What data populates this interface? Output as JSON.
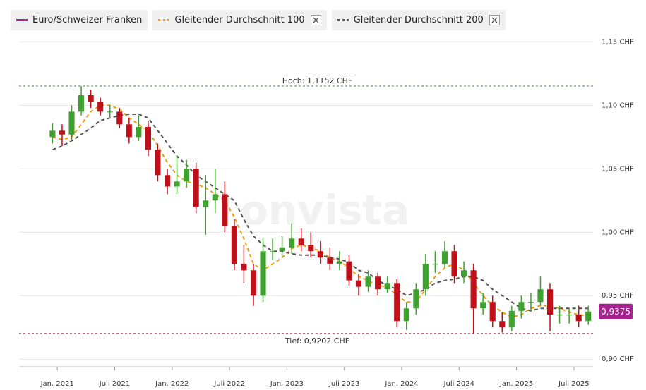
{
  "chart_data": {
    "type": "candlestick",
    "watermark": "onvista",
    "grid": true,
    "x": [
      "2020-12",
      "2021-01",
      "2021-02",
      "2021-03",
      "2021-04",
      "2021-05",
      "2021-06",
      "2021-07",
      "2021-08",
      "2021-09",
      "2021-10",
      "2021-11",
      "2021-12",
      "2022-01",
      "2022-02",
      "2022-03",
      "2022-04",
      "2022-05",
      "2022-06",
      "2022-07",
      "2022-08",
      "2022-09",
      "2022-10",
      "2022-11",
      "2022-12",
      "2023-01",
      "2023-02",
      "2023-03",
      "2023-04",
      "2023-05",
      "2023-06",
      "2023-07",
      "2023-08",
      "2023-09",
      "2023-10",
      "2023-11",
      "2023-12",
      "2024-01",
      "2024-02",
      "2024-03",
      "2024-04",
      "2024-05",
      "2024-06",
      "2024-07",
      "2024-08",
      "2024-09",
      "2024-10",
      "2024-11",
      "2024-12",
      "2025-01",
      "2025-02",
      "2025-03",
      "2025-04",
      "2025-05",
      "2025-06",
      "2025-07",
      "2025-08"
    ],
    "xlim": [
      "2020-09",
      "2025-09"
    ],
    "xticks": [
      {
        "value": "2021-01",
        "label": "Jan. 2021"
      },
      {
        "value": "2021-07",
        "label": "Juli 2021"
      },
      {
        "value": "2022-01",
        "label": "Jan. 2022"
      },
      {
        "value": "2022-07",
        "label": "Juli 2022"
      },
      {
        "value": "2023-01",
        "label": "Jan. 2023"
      },
      {
        "value": "2023-07",
        "label": "Juli 2023"
      },
      {
        "value": "2024-01",
        "label": "Jan. 2024"
      },
      {
        "value": "2024-07",
        "label": "Juli 2024"
      },
      {
        "value": "2025-01",
        "label": "Jan. 2025"
      },
      {
        "value": "2025-07",
        "label": "Juli 2025"
      }
    ],
    "ylim": [
      0.894,
      1.158
    ],
    "yticks": [
      {
        "value": 0.9,
        "label": "0,90 CHF"
      },
      {
        "value": 0.95,
        "label": "0,95 CHF"
      },
      {
        "value": 1.0,
        "label": "1,00 CHF"
      },
      {
        "value": 1.05,
        "label": "1,05 CHF"
      },
      {
        "value": 1.1,
        "label": "1,10 CHF"
      },
      {
        "value": 1.15,
        "label": "1,15 CHF"
      }
    ],
    "series": [
      {
        "name": "Euro/Schweizer Franken",
        "type": "candlestick",
        "color": "#9c2a8c",
        "up_color": "#3fa12f",
        "down_color": "#c0111b",
        "open": [
          1.075,
          1.08,
          1.077,
          1.095,
          1.108,
          1.103,
          1.095,
          1.095,
          1.085,
          1.075,
          1.083,
          1.065,
          1.045,
          1.036,
          1.04,
          1.05,
          1.02,
          1.025,
          1.03,
          1.005,
          0.975,
          0.97,
          0.95,
          0.985,
          0.985,
          0.988,
          0.995,
          0.99,
          0.985,
          0.98,
          0.975,
          0.977,
          0.962,
          0.957,
          0.965,
          0.955,
          0.96,
          0.93,
          0.94,
          0.955,
          0.975,
          0.975,
          0.985,
          0.965,
          0.97,
          0.94,
          0.945,
          0.93,
          0.925,
          0.938,
          0.945,
          0.945,
          0.955,
          0.935,
          0.935,
          0.935,
          0.93
        ],
        "high": [
          1.086,
          1.085,
          1.1,
          1.1152,
          1.112,
          1.106,
          1.1,
          1.098,
          1.09,
          1.092,
          1.088,
          1.07,
          1.05,
          1.06,
          1.057,
          1.055,
          1.045,
          1.05,
          1.04,
          1.01,
          0.99,
          0.975,
          0.995,
          0.995,
          0.997,
          1.007,
          1.003,
          1.0,
          0.993,
          0.988,
          0.985,
          0.982,
          0.967,
          0.97,
          0.968,
          0.965,
          0.963,
          0.945,
          0.96,
          0.983,
          0.985,
          0.993,
          0.99,
          0.977,
          0.975,
          0.952,
          0.95,
          0.937,
          0.942,
          0.95,
          0.952,
          0.965,
          0.96,
          0.942,
          0.94,
          0.942,
          0.942
        ],
        "low": [
          1.07,
          1.068,
          1.073,
          1.092,
          1.098,
          1.092,
          1.09,
          1.082,
          1.07,
          1.072,
          1.06,
          1.04,
          1.03,
          1.03,
          1.035,
          1.015,
          0.998,
          1.015,
          1.0,
          0.97,
          0.96,
          0.942,
          0.945,
          0.978,
          0.98,
          0.983,
          0.985,
          0.98,
          0.975,
          0.97,
          0.97,
          0.958,
          0.95,
          0.953,
          0.95,
          0.952,
          0.925,
          0.923,
          0.935,
          0.95,
          0.968,
          0.972,
          0.96,
          0.96,
          0.9202,
          0.935,
          0.925,
          0.921,
          0.922,
          0.932,
          0.938,
          0.942,
          0.922,
          0.928,
          0.928,
          0.925,
          0.927
        ],
        "close": [
          1.08,
          1.077,
          1.095,
          1.108,
          1.103,
          1.095,
          1.095,
          1.085,
          1.075,
          1.083,
          1.065,
          1.045,
          1.036,
          1.04,
          1.05,
          1.02,
          1.025,
          1.03,
          1.005,
          0.975,
          0.97,
          0.95,
          0.985,
          0.985,
          0.988,
          0.995,
          0.99,
          0.985,
          0.98,
          0.975,
          0.977,
          0.962,
          0.957,
          0.965,
          0.955,
          0.96,
          0.93,
          0.94,
          0.955,
          0.975,
          0.975,
          0.985,
          0.965,
          0.97,
          0.94,
          0.945,
          0.93,
          0.925,
          0.938,
          0.945,
          0.945,
          0.955,
          0.935,
          0.935,
          0.935,
          0.93,
          0.9375
        ]
      },
      {
        "name": "Gleitender Durchschnitt 100",
        "type": "line",
        "color": "#f39c12",
        "line_style": "dashed",
        "values": [
          1.075,
          1.073,
          1.075,
          1.085,
          1.095,
          1.1,
          1.1,
          1.097,
          1.09,
          1.085,
          1.08,
          1.068,
          1.055,
          1.045,
          1.04,
          1.038,
          1.035,
          1.03,
          1.025,
          1.012,
          0.995,
          0.975,
          0.97,
          0.975,
          0.98,
          0.987,
          0.99,
          0.988,
          0.985,
          0.98,
          0.977,
          0.972,
          0.965,
          0.962,
          0.958,
          0.957,
          0.95,
          0.945,
          0.945,
          0.955,
          0.965,
          0.972,
          0.975,
          0.97,
          0.96,
          0.95,
          0.942,
          0.937,
          0.933,
          0.935,
          0.94,
          0.942,
          0.942,
          0.94,
          0.937,
          0.935,
          0.934
        ]
      },
      {
        "name": "Gleitender Durchschnitt 200",
        "type": "line",
        "color": "#555555",
        "line_style": "dashed",
        "values": [
          1.065,
          1.068,
          1.072,
          1.077,
          1.082,
          1.088,
          1.09,
          1.092,
          1.093,
          1.093,
          1.09,
          1.08,
          1.07,
          1.06,
          1.053,
          1.045,
          1.04,
          1.035,
          1.03,
          1.025,
          1.01,
          0.997,
          0.99,
          0.985,
          0.985,
          0.983,
          0.982,
          0.982,
          0.982,
          0.98,
          0.979,
          0.976,
          0.97,
          0.968,
          0.962,
          0.958,
          0.955,
          0.95,
          0.952,
          0.955,
          0.96,
          0.962,
          0.963,
          0.965,
          0.965,
          0.962,
          0.955,
          0.95,
          0.945,
          0.94,
          0.938,
          0.94,
          0.94,
          0.94,
          0.94,
          0.94,
          0.94
        ]
      }
    ],
    "annotations": [
      {
        "value": 1.1152,
        "label": "Hoch: 1,1152 CHF",
        "color": "#2e9e3a"
      },
      {
        "value": 0.9202,
        "label": "Tief: 0,9202 CHF",
        "color": "#c0111b"
      }
    ],
    "last_value": {
      "value": 0.9375,
      "label": "0,9375",
      "color": "#a4238f"
    }
  }
}
